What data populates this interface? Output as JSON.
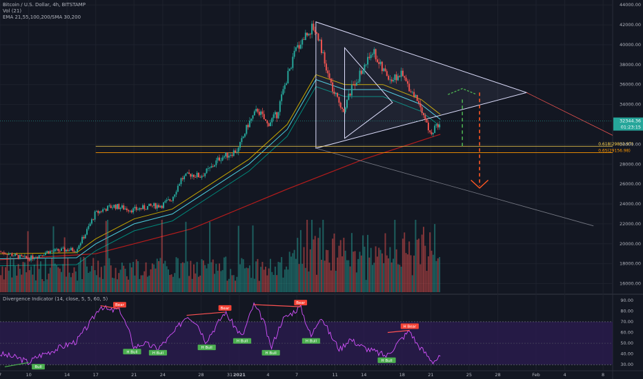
{
  "header": {
    "symbol": "Bitcoin / U.S. Dollar, 4h, BITSTAMP",
    "volume": "Vol (21)",
    "ma": "EMA 21,55,100,200/SMA 30,200"
  },
  "indicator": {
    "title": "Divergence Indicator (14, close, 5, 5, 60, 5)",
    "levels": [
      90,
      80,
      70,
      60,
      50,
      40,
      30
    ],
    "ylim": [
      25,
      95
    ],
    "band": [
      30,
      70
    ],
    "midline": 50
  },
  "price_axis": {
    "ticks": [
      44000,
      42000,
      40000,
      38000,
      36000,
      34000,
      30000,
      28000,
      26000,
      24000,
      22000,
      20000,
      18000,
      16000
    ],
    "ylim": [
      15000,
      44500
    ],
    "last_price": "32344.36",
    "countdown": "01:23:15"
  },
  "time_axis": {
    "labels": [
      {
        "t": 0,
        "label": "7"
      },
      {
        "t": 3,
        "label": "10"
      },
      {
        "t": 7,
        "label": "14"
      },
      {
        "t": 10,
        "label": "17"
      },
      {
        "t": 14,
        "label": "21"
      },
      {
        "t": 17,
        "label": "24"
      },
      {
        "t": 21,
        "label": "28"
      },
      {
        "t": 24,
        "label": "31"
      },
      {
        "t": 25,
        "label": "2021"
      },
      {
        "t": 28,
        "label": "4"
      },
      {
        "t": 31,
        "label": "7"
      },
      {
        "t": 35,
        "label": "11"
      },
      {
        "t": 38,
        "label": "14"
      },
      {
        "t": 42,
        "label": "18"
      },
      {
        "t": 45,
        "label": "21"
      },
      {
        "t": 49,
        "label": "25"
      },
      {
        "t": 52,
        "label": "28"
      },
      {
        "t": 56,
        "label": "Feb"
      },
      {
        "t": 59,
        "label": "4"
      },
      {
        "t": 63,
        "label": "8"
      }
    ]
  },
  "fib_levels": [
    {
      "label": "0.618(29802.97)",
      "price": 29803,
      "color": "#ffd54f"
    },
    {
      "label": "0.65(29156.98)",
      "price": 29157,
      "color": "#ff9800"
    }
  ],
  "divergence_labels": [
    {
      "text": "Bull",
      "t": 4,
      "v": 32,
      "kind": "bull"
    },
    {
      "text": "Bear",
      "t": 12.5,
      "v": 82,
      "kind": "bear"
    },
    {
      "text": "H Bull",
      "t": 13.8,
      "v": 46,
      "kind": "bull"
    },
    {
      "text": "H Bull",
      "t": 16.5,
      "v": 45,
      "kind": "bull"
    },
    {
      "text": "Bear",
      "t": 23.5,
      "v": 79,
      "kind": "bear"
    },
    {
      "text": "H Bull",
      "t": 21.6,
      "v": 50,
      "kind": "bull"
    },
    {
      "text": "H Bull",
      "t": 25.3,
      "v": 56,
      "kind": "bull"
    },
    {
      "text": "H Bull",
      "t": 28.3,
      "v": 45,
      "kind": "bull"
    },
    {
      "text": "Bear",
      "t": 31.4,
      "v": 84,
      "kind": "bear"
    },
    {
      "text": "H Bull",
      "t": 32.5,
      "v": 56,
      "kind": "bull"
    },
    {
      "text": "H Bull",
      "t": 40.4,
      "v": 38,
      "kind": "bull"
    },
    {
      "text": "H Bear",
      "t": 42.8,
      "v": 62,
      "kind": "bear"
    }
  ],
  "colors": {
    "up": "#26a69a",
    "down": "#ef5350",
    "oscillator": "#d552ff",
    "band": "#2a1b4f",
    "triangle": "#e0e0ff",
    "forecast_up": "#4caf50",
    "forecast_down": "#ff5722",
    "bull_label": "#4caf50",
    "bear_label": "#f44336"
  },
  "chart_data": {
    "type": "candlestick",
    "x_unit": "days since Dec 7, 2020",
    "xlim": [
      0,
      64
    ],
    "price_path": [
      [
        0,
        19200
      ],
      [
        1,
        19000
      ],
      [
        2,
        18700
      ],
      [
        3,
        18500
      ],
      [
        4,
        18800
      ],
      [
        5,
        19200
      ],
      [
        6,
        19300
      ],
      [
        7,
        19400
      ],
      [
        8,
        19400
      ],
      [
        9,
        21000
      ],
      [
        10,
        23000
      ],
      [
        11,
        23500
      ],
      [
        12,
        23800
      ],
      [
        13,
        23600
      ],
      [
        14,
        23400
      ],
      [
        15,
        23600
      ],
      [
        16,
        23800
      ],
      [
        17,
        23900
      ],
      [
        18,
        24500
      ],
      [
        19,
        26500
      ],
      [
        20,
        27000
      ],
      [
        21,
        26800
      ],
      [
        22,
        27500
      ],
      [
        23,
        28600
      ],
      [
        24,
        29000
      ],
      [
        25,
        29500
      ],
      [
        26,
        32000
      ],
      [
        27,
        33500
      ],
      [
        28,
        32000
      ],
      [
        29,
        33000
      ],
      [
        30,
        36500
      ],
      [
        31,
        39500
      ],
      [
        32,
        41000
      ],
      [
        32.8,
        41800
      ],
      [
        33.5,
        40500
      ],
      [
        34,
        38000
      ],
      [
        35,
        35000
      ],
      [
        36,
        33500
      ],
      [
        37,
        36000
      ],
      [
        38,
        37500
      ],
      [
        39,
        39500
      ],
      [
        40,
        37500
      ],
      [
        41,
        36500
      ],
      [
        42,
        37000
      ],
      [
        43,
        35500
      ],
      [
        44,
        34000
      ],
      [
        45,
        31000
      ],
      [
        45.5,
        31500
      ],
      [
        46,
        32344
      ]
    ],
    "ema_path": [
      [
        0,
        19000
      ],
      [
        8,
        19100
      ],
      [
        10,
        20500
      ],
      [
        14,
        22500
      ],
      [
        18,
        23500
      ],
      [
        22,
        26000
      ],
      [
        26,
        28500
      ],
      [
        30,
        32000
      ],
      [
        33,
        37000
      ],
      [
        36,
        36000
      ],
      [
        40,
        36000
      ],
      [
        44,
        34500
      ],
      [
        46,
        33000
      ]
    ],
    "sma200_path": [
      [
        0,
        18400
      ],
      [
        10,
        19000
      ],
      [
        20,
        21500
      ],
      [
        30,
        25500
      ],
      [
        38,
        28500
      ],
      [
        46,
        31000
      ]
    ],
    "rsi_path": [
      [
        0,
        40
      ],
      [
        2,
        36
      ],
      [
        3,
        32
      ],
      [
        4,
        38
      ],
      [
        6,
        45
      ],
      [
        8,
        52
      ],
      [
        9.5,
        70
      ],
      [
        10.5,
        85
      ],
      [
        11.5,
        80
      ],
      [
        12.5,
        82
      ],
      [
        13.5,
        60
      ],
      [
        14,
        46
      ],
      [
        15,
        50
      ],
      [
        16.5,
        45
      ],
      [
        18,
        58
      ],
      [
        19.5,
        76
      ],
      [
        20.5,
        70
      ],
      [
        21.5,
        52
      ],
      [
        22.5,
        65
      ],
      [
        23.5,
        79
      ],
      [
        24.5,
        66
      ],
      [
        25.3,
        56
      ],
      [
        26.5,
        86
      ],
      [
        27.5,
        72
      ],
      [
        28.3,
        45
      ],
      [
        29.5,
        72
      ],
      [
        31.4,
        84
      ],
      [
        32.5,
        56
      ],
      [
        33.5,
        76
      ],
      [
        34.5,
        58
      ],
      [
        35.5,
        44
      ],
      [
        36.5,
        54
      ],
      [
        38,
        46
      ],
      [
        40.4,
        38
      ],
      [
        41.5,
        50
      ],
      [
        42.8,
        62
      ],
      [
        43.5,
        50
      ],
      [
        44.5,
        40
      ],
      [
        45.2,
        33
      ],
      [
        46,
        37
      ]
    ],
    "annotations": [
      {
        "label": "0.618(29802.97)",
        "y": 29803
      },
      {
        "label": "0.65(29156.98)",
        "y": 29157
      }
    ]
  }
}
